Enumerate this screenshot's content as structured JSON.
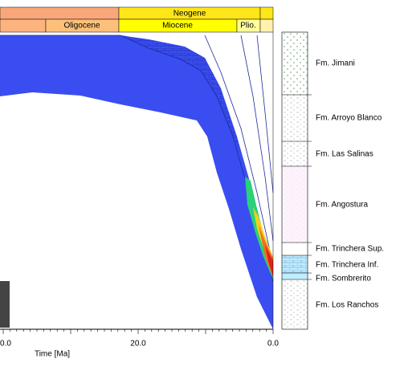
{
  "header": {
    "periods": [
      "Neogene"
    ],
    "epochs": [
      "Oligocene",
      "Miocene",
      "Plio."
    ]
  },
  "x_axis": {
    "label": "Time [Ma]",
    "ticks": [
      "0.0",
      "20.0",
      "0.0"
    ]
  },
  "formations": [
    "Fm. Jimani",
    "Fm. Arroyo Blanco",
    "Fm. Las Salinas",
    "Fm. Angostura",
    "Fm. Trinchera Sup.",
    "Fm. Trinchera Inf.",
    "Fm. Sombrerito",
    "Fm. Los Ranchos"
  ]
}
